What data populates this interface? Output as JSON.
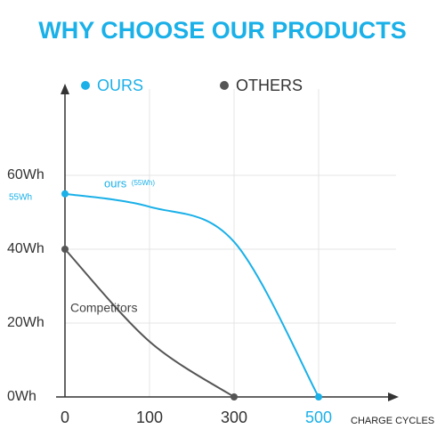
{
  "chart_data": {
    "type": "line",
    "title": "WHY CHOOSE OUR PRODUCTS",
    "x_label": "CHARGE CYCLES",
    "categories": [
      "0",
      "100",
      "300",
      "500"
    ],
    "series": [
      {
        "name": "OURS",
        "color": "#1ab0e8",
        "values": [
          55,
          51.5,
          42,
          0
        ]
      },
      {
        "name": "OTHERS",
        "color": "#555555",
        "values": [
          40,
          15,
          0,
          null
        ]
      }
    ],
    "ylim": [
      0,
      80
    ],
    "yticks": [
      {
        "value": 0,
        "label": "0Wh"
      },
      {
        "value": 20,
        "label": "20Wh"
      },
      {
        "value": 40,
        "label": "40Wh"
      },
      {
        "value": 60,
        "label": "60Wh"
      }
    ],
    "annotations": [
      "55Wh",
      "ours",
      "(55Wh)",
      "Competitors"
    ],
    "grid": true
  }
}
